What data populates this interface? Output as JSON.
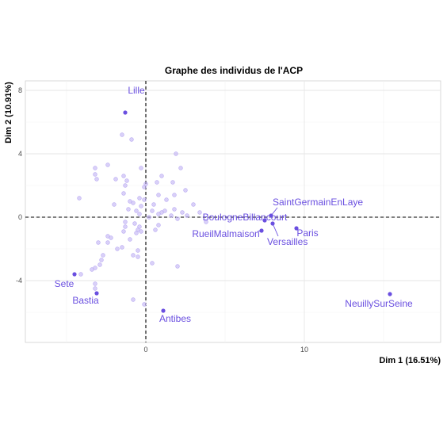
{
  "chart_data": {
    "type": "scatter",
    "title": "Graphe des individus de l'ACP",
    "xlabel": "Dim 1 (16.51%)",
    "ylabel": "Dim 2 (10.91%)",
    "xlim": [
      -7.6,
      18.6
    ],
    "ylim": [
      -7.9,
      8.6
    ],
    "x_ticks": [
      0,
      10
    ],
    "y_ticks": [
      -4,
      0,
      4,
      8
    ],
    "grid": true,
    "reference_lines": {
      "x": 0,
      "y": 0,
      "style": "dashed"
    },
    "colors": {
      "highlight": "#6a4fe0",
      "background_points": "#b9aaf2",
      "label": "#6a4fe0"
    },
    "labeled_points": [
      {
        "name": "Lille",
        "x": -1.3,
        "y": 6.6
      },
      {
        "name": "BoulogneBillancourt",
        "x": 7.5,
        "y": -0.2
      },
      {
        "name": "SaintGermainEnLaye",
        "x": 7.9,
        "y": 0.1
      },
      {
        "name": "Paris",
        "x": 9.5,
        "y": -0.7
      },
      {
        "name": "Versailles",
        "x": 8.0,
        "y": -0.4
      },
      {
        "name": "RueilMalmaison",
        "x": 7.3,
        "y": -0.85
      },
      {
        "name": "Sete",
        "x": -4.5,
        "y": -3.6
      },
      {
        "name": "Bastia",
        "x": -3.1,
        "y": -4.8
      },
      {
        "name": "Antibes",
        "x": 1.1,
        "y": -5.9
      },
      {
        "name": "NeuillySurSeine",
        "x": 15.4,
        "y": -4.85
      }
    ],
    "other_points": [
      [
        -1.5,
        5.2
      ],
      [
        -0.9,
        4.9
      ],
      [
        1.9,
        4.0
      ],
      [
        -2.4,
        3.3
      ],
      [
        -3.2,
        3.1
      ],
      [
        -0.3,
        3.1
      ],
      [
        2.2,
        3.1
      ],
      [
        -3.2,
        2.7
      ],
      [
        1.0,
        2.6
      ],
      [
        -1.4,
        2.6
      ],
      [
        -1.9,
        2.4
      ],
      [
        -3.1,
        2.4
      ],
      [
        -1.2,
        2.3
      ],
      [
        0.7,
        2.2
      ],
      [
        1.7,
        2.2
      ],
      [
        0.0,
        2.1
      ],
      [
        -1.3,
        2.0
      ],
      [
        -0.1,
        1.9
      ],
      [
        2.5,
        1.7
      ],
      [
        -1.4,
        1.5
      ],
      [
        0.8,
        1.4
      ],
      [
        1.8,
        1.4
      ],
      [
        -0.4,
        1.2
      ],
      [
        -4.2,
        1.2
      ],
      [
        -0.1,
        1.1
      ],
      [
        1.3,
        1.1
      ],
      [
        -1.0,
        1.0
      ],
      [
        -0.8,
        0.9
      ],
      [
        0.5,
        0.8
      ],
      [
        -2.0,
        0.8
      ],
      [
        3.0,
        0.8
      ],
      [
        -0.3,
        0.7
      ],
      [
        -1.1,
        0.5
      ],
      [
        0.4,
        0.4
      ],
      [
        -0.6,
        0.4
      ],
      [
        1.0,
        0.3
      ],
      [
        1.2,
        0.4
      ],
      [
        1.8,
        0.5
      ],
      [
        2.3,
        0.3
      ],
      [
        2.6,
        0.1
      ],
      [
        3.4,
        0.3
      ],
      [
        0.8,
        0.2
      ],
      [
        -0.4,
        0.2
      ],
      [
        0.2,
        0.0
      ],
      [
        1.6,
        0.1
      ],
      [
        2.0,
        -0.1
      ],
      [
        3.8,
        -0.3
      ],
      [
        -1.3,
        -0.3
      ],
      [
        -0.7,
        -0.4
      ],
      [
        -0.4,
        -0.6
      ],
      [
        -1.3,
        -0.6
      ],
      [
        0.8,
        -0.5
      ],
      [
        0.6,
        -0.8
      ],
      [
        -0.5,
        -0.8
      ],
      [
        -0.3,
        -0.9
      ],
      [
        -0.6,
        -1.0
      ],
      [
        -1.4,
        -0.9
      ],
      [
        -2.4,
        -1.2
      ],
      [
        -2.2,
        -1.3
      ],
      [
        -1.0,
        -1.4
      ],
      [
        -3.0,
        -1.6
      ],
      [
        -2.4,
        -1.6
      ],
      [
        -1.5,
        -1.9
      ],
      [
        -1.8,
        -2.0
      ],
      [
        -0.5,
        -2.1
      ],
      [
        -0.8,
        -2.4
      ],
      [
        -0.5,
        -2.5
      ],
      [
        -2.7,
        -2.4
      ],
      [
        -2.8,
        -2.7
      ],
      [
        -2.9,
        -3.0
      ],
      [
        2.0,
        -3.1
      ],
      [
        -3.2,
        -3.2
      ],
      [
        -3.4,
        -3.3
      ],
      [
        -4.1,
        -3.6
      ],
      [
        0.4,
        -2.9
      ],
      [
        -3.2,
        -4.2
      ],
      [
        -3.2,
        -4.5
      ],
      [
        -0.8,
        -5.2
      ],
      [
        -0.1,
        -5.5
      ]
    ]
  }
}
